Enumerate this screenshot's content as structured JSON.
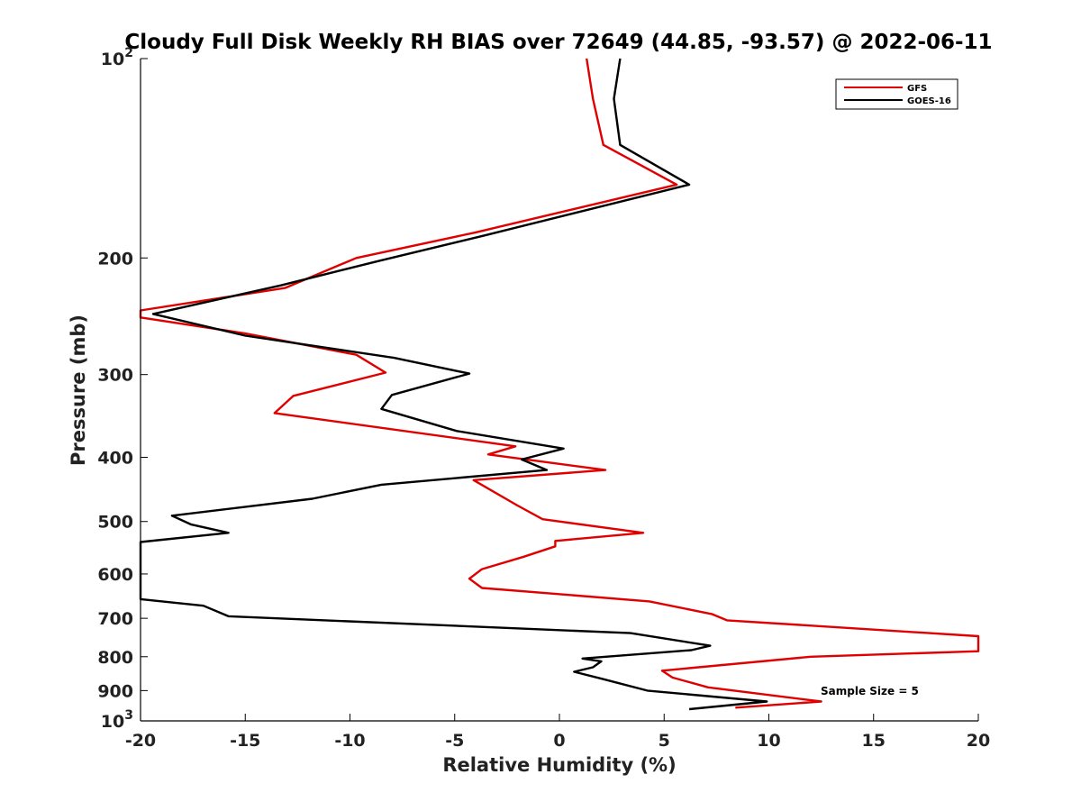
{
  "chart_data": {
    "type": "line",
    "title": "Cloudy Full Disk Weekly RH BIAS over 72649 (44.85, -93.57) @ 2022-06-11",
    "xlabel": "Relative Humidity (%)",
    "ylabel": "Pressure (mb)",
    "xlim": [
      -20,
      20
    ],
    "ylim": [
      100,
      1000
    ],
    "y_scale": "log",
    "y_reversed": true,
    "grid": false,
    "legend_position": "top-right",
    "x_ticks": [
      -20,
      -15,
      -10,
      -5,
      0,
      5,
      10,
      15,
      20
    ],
    "y_ticks": [
      {
        "value": 100,
        "base": "10",
        "exp": "2"
      },
      {
        "value": 200,
        "label": "200"
      },
      {
        "value": 300,
        "label": "300"
      },
      {
        "value": 400,
        "label": "400"
      },
      {
        "value": 500,
        "label": "500"
      },
      {
        "value": 600,
        "label": "600"
      },
      {
        "value": 700,
        "label": "700"
      },
      {
        "value": 800,
        "label": "800"
      },
      {
        "value": 900,
        "label": "900"
      },
      {
        "value": 1000,
        "base": "10",
        "exp": "3"
      }
    ],
    "annotation": "Sample Size = 5",
    "series": [
      {
        "name": "GFS",
        "color": "#e00000",
        "points": [
          [
            1.3,
            100
          ],
          [
            1.6,
            115
          ],
          [
            2.1,
            135
          ],
          [
            5.6,
            155
          ],
          [
            -4,
            183
          ],
          [
            -9.7,
            200
          ],
          [
            -13.1,
            222
          ],
          [
            -20,
            240
          ],
          [
            -20,
            246
          ],
          [
            -15,
            260
          ],
          [
            -9.7,
            280
          ],
          [
            -8.3,
            298
          ],
          [
            -12.7,
            323
          ],
          [
            -13.6,
            343
          ],
          [
            -2.1,
            385
          ],
          [
            -3.4,
            396
          ],
          [
            2.2,
            418
          ],
          [
            -4.1,
            433
          ],
          [
            -2,
            473
          ],
          [
            -0.8,
            496
          ],
          [
            4,
            520
          ],
          [
            -0.2,
            535
          ],
          [
            -0.2,
            545
          ],
          [
            -1.7,
            565
          ],
          [
            -3.7,
            590
          ],
          [
            -4.3,
            610
          ],
          [
            -3.7,
            630
          ],
          [
            4.3,
            660
          ],
          [
            7.3,
            690
          ],
          [
            8,
            705
          ],
          [
            20,
            745
          ],
          [
            20,
            785
          ],
          [
            12,
            800
          ],
          [
            4.9,
            840
          ],
          [
            5.4,
            860
          ],
          [
            7.1,
            890
          ],
          [
            12.5,
            935
          ],
          [
            8.4,
            955
          ]
        ]
      },
      {
        "name": "GOES-16",
        "color": "#000000",
        "points": [
          [
            2.9,
            100
          ],
          [
            2.6,
            115
          ],
          [
            2.9,
            135
          ],
          [
            6.2,
            155
          ],
          [
            -3.6,
            185
          ],
          [
            -8.6,
            202
          ],
          [
            -13.3,
            220
          ],
          [
            -19.4,
            243
          ],
          [
            -15,
            262
          ],
          [
            -7.9,
            283
          ],
          [
            -4.3,
            299
          ],
          [
            -8,
            322
          ],
          [
            -8.5,
            338
          ],
          [
            -4.9,
            365
          ],
          [
            0.2,
            388
          ],
          [
            -1.8,
            403
          ],
          [
            -0.6,
            418
          ],
          [
            -8.5,
            440
          ],
          [
            -11.8,
            462
          ],
          [
            -18.5,
            490
          ],
          [
            -17.6,
            505
          ],
          [
            -15.8,
            520
          ],
          [
            -20,
            537
          ],
          [
            -20,
            655
          ],
          [
            -17,
            670
          ],
          [
            -15.8,
            695
          ],
          [
            3.4,
            737
          ],
          [
            7.2,
            770
          ],
          [
            6.3,
            782
          ],
          [
            1.1,
            805
          ],
          [
            2,
            813
          ],
          [
            1.6,
            830
          ],
          [
            0.7,
            843
          ],
          [
            2.1,
            865
          ],
          [
            4.2,
            900
          ],
          [
            9.9,
            935
          ],
          [
            6.2,
            960
          ]
        ]
      }
    ]
  }
}
